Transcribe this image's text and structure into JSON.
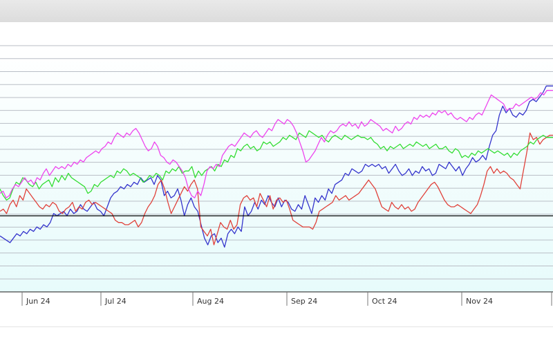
{
  "chart_data": {
    "type": "line",
    "grid": true,
    "x_tick_labels": [
      "Jun 24",
      "Jul 24",
      "Aug 24",
      "Sep 24",
      "Oct 24",
      "Nov 24"
    ],
    "reference_line": 0,
    "ylim": [
      -0.34,
      0.76
    ],
    "series": [
      {
        "color": "#3333cc",
        "values": [
          -0.09,
          -0.1,
          -0.11,
          -0.12,
          -0.1,
          -0.08,
          -0.09,
          -0.07,
          -0.08,
          -0.06,
          -0.07,
          -0.05,
          -0.06,
          -0.04,
          -0.05,
          -0.03,
          0.01,
          0.0,
          0.01,
          0.02,
          0.0,
          0.03,
          0.01,
          0.02,
          0.05,
          0.03,
          0.02,
          0.04,
          0.06,
          0.03,
          0.02,
          0.0,
          0.04,
          0.08,
          0.1,
          0.11,
          0.13,
          0.12,
          0.14,
          0.13,
          0.15,
          0.14,
          0.17,
          0.15,
          0.16,
          0.17,
          0.14,
          0.18,
          0.16,
          0.09,
          0.11,
          0.08,
          0.09,
          0.12,
          0.07,
          0.0,
          0.05,
          0.08,
          0.04,
          0.02,
          -0.04,
          -0.1,
          -0.13,
          -0.09,
          -0.08,
          -0.12,
          -0.1,
          -0.14,
          -0.08,
          -0.06,
          -0.08,
          -0.05,
          -0.07,
          0.04,
          0.0,
          0.02,
          0.06,
          0.03,
          0.07,
          0.05,
          0.09,
          0.06,
          0.04,
          0.08,
          0.04,
          0.07,
          0.06,
          0.03,
          0.02,
          0.05,
          0.03,
          0.09,
          0.05,
          0.01,
          0.08,
          0.06,
          0.09,
          0.07,
          0.12,
          0.1,
          0.14,
          0.15,
          0.16,
          0.19,
          0.18,
          0.21,
          0.2,
          0.19,
          0.2,
          0.23,
          0.22,
          0.23,
          0.22,
          0.23,
          0.21,
          0.22,
          0.19,
          0.21,
          0.23,
          0.2,
          0.18,
          0.19,
          0.21,
          0.18,
          0.2,
          0.19,
          0.22,
          0.2,
          0.21,
          0.18,
          0.19,
          0.23,
          0.22,
          0.21,
          0.24,
          0.22,
          0.2,
          0.22,
          0.18,
          0.21,
          0.23,
          0.26,
          0.24,
          0.25,
          0.27,
          0.25,
          0.31,
          0.36,
          0.38,
          0.45,
          0.49,
          0.46,
          0.48,
          0.45,
          0.44,
          0.46,
          0.45,
          0.47,
          0.51,
          0.52,
          0.51,
          0.53,
          0.55,
          0.58,
          0.58,
          0.58
        ]
      },
      {
        "color": "#e0413a",
        "values": [
          0.02,
          0.03,
          0.01,
          0.05,
          0.07,
          0.04,
          0.09,
          0.07,
          0.12,
          0.1,
          0.08,
          0.06,
          0.04,
          0.03,
          0.05,
          0.04,
          0.06,
          0.05,
          0.02,
          0.01,
          0.03,
          0.04,
          0.06,
          0.02,
          0.04,
          0.03,
          0.06,
          0.07,
          0.05,
          0.06,
          0.05,
          0.04,
          0.03,
          0.02,
          0.01,
          -0.02,
          -0.03,
          -0.03,
          -0.04,
          -0.04,
          -0.03,
          -0.02,
          -0.05,
          -0.03,
          0.01,
          0.04,
          0.06,
          0.09,
          0.14,
          0.16,
          0.12,
          0.06,
          0.01,
          0.04,
          0.07,
          0.1,
          0.13,
          0.11,
          0.14,
          0.16,
          0.12,
          -0.05,
          -0.07,
          -0.09,
          -0.06,
          -0.13,
          -0.08,
          -0.03,
          -0.05,
          -0.06,
          -0.02,
          -0.06,
          -0.04,
          0.05,
          0.08,
          0.09,
          0.07,
          0.08,
          0.04,
          0.1,
          0.07,
          0.04,
          0.09,
          0.03,
          0.07,
          0.08,
          0.06,
          0.07,
          0.03,
          -0.02,
          -0.03,
          -0.04,
          -0.05,
          -0.05,
          -0.05,
          -0.06,
          -0.03,
          0.02,
          0.03,
          0.04,
          0.05,
          0.06,
          0.09,
          0.07,
          0.08,
          0.09,
          0.07,
          0.08,
          0.09,
          0.1,
          0.12,
          0.14,
          0.16,
          0.14,
          0.12,
          0.08,
          0.04,
          0.03,
          0.02,
          0.06,
          0.04,
          0.03,
          0.05,
          0.03,
          0.04,
          0.02,
          0.03,
          0.06,
          0.08,
          0.1,
          0.12,
          0.14,
          0.15,
          0.13,
          0.1,
          0.07,
          0.05,
          0.04,
          0.04,
          0.05,
          0.04,
          0.03,
          0.02,
          0.01,
          0.03,
          0.05,
          0.09,
          0.14,
          0.2,
          0.22,
          0.19,
          0.21,
          0.19,
          0.2,
          0.19,
          0.17,
          0.16,
          0.14,
          0.12,
          0.2,
          0.28,
          0.37,
          0.34,
          0.35,
          0.32,
          0.34,
          0.35,
          0.36,
          0.36
        ]
      },
      {
        "color": "#33dd33",
        "values": [
          0.12,
          0.09,
          0.07,
          0.08,
          0.12,
          0.15,
          0.14,
          0.17,
          0.16,
          0.14,
          0.13,
          0.15,
          0.12,
          0.14,
          0.15,
          0.16,
          0.13,
          0.17,
          0.15,
          0.18,
          0.16,
          0.19,
          0.17,
          0.16,
          0.15,
          0.14,
          0.13,
          0.1,
          0.11,
          0.14,
          0.13,
          0.15,
          0.16,
          0.17,
          0.18,
          0.17,
          0.2,
          0.19,
          0.21,
          0.2,
          0.18,
          0.19,
          0.18,
          0.17,
          0.15,
          0.16,
          0.18,
          0.17,
          0.19,
          0.18,
          0.16,
          0.2,
          0.19,
          0.21,
          0.2,
          0.22,
          0.19,
          0.2,
          0.2,
          0.22,
          0.17,
          0.2,
          0.18,
          0.2,
          0.21,
          0.22,
          0.2,
          0.23,
          0.22,
          0.25,
          0.24,
          0.27,
          0.26,
          0.3,
          0.29,
          0.31,
          0.32,
          0.3,
          0.31,
          0.29,
          0.3,
          0.33,
          0.32,
          0.33,
          0.31,
          0.32,
          0.33,
          0.35,
          0.34,
          0.36,
          0.35,
          0.34,
          0.37,
          0.36,
          0.35,
          0.38,
          0.37,
          0.36,
          0.35,
          0.36,
          0.34,
          0.33,
          0.35,
          0.36,
          0.35,
          0.34,
          0.36,
          0.35,
          0.34,
          0.35,
          0.36,
          0.35,
          0.35,
          0.34,
          0.35,
          0.33,
          0.32,
          0.3,
          0.31,
          0.29,
          0.31,
          0.3,
          0.31,
          0.32,
          0.3,
          0.31,
          0.32,
          0.31,
          0.33,
          0.32,
          0.31,
          0.32,
          0.3,
          0.31,
          0.32,
          0.3,
          0.3,
          0.31,
          0.29,
          0.28,
          0.3,
          0.29,
          0.26,
          0.27,
          0.26,
          0.28,
          0.27,
          0.29,
          0.28,
          0.29,
          0.3,
          0.29,
          0.28,
          0.29,
          0.28,
          0.27,
          0.28,
          0.26,
          0.28,
          0.27,
          0.29,
          0.3,
          0.31,
          0.33,
          0.32,
          0.34,
          0.35,
          0.36,
          0.35,
          0.35,
          0.35
        ]
      },
      {
        "color": "#ee44ee",
        "values": [
          0.1,
          0.11,
          0.08,
          0.09,
          0.12,
          0.14,
          0.13,
          0.15,
          0.17,
          0.15,
          0.16,
          0.14,
          0.17,
          0.16,
          0.19,
          0.21,
          0.18,
          0.2,
          0.22,
          0.21,
          0.22,
          0.21,
          0.23,
          0.22,
          0.24,
          0.23,
          0.25,
          0.24,
          0.26,
          0.27,
          0.28,
          0.29,
          0.28,
          0.3,
          0.31,
          0.33,
          0.32,
          0.35,
          0.37,
          0.36,
          0.35,
          0.37,
          0.36,
          0.38,
          0.39,
          0.37,
          0.34,
          0.31,
          0.29,
          0.3,
          0.33,
          0.31,
          0.27,
          0.26,
          0.24,
          0.23,
          0.25,
          0.24,
          0.22,
          0.2,
          0.17,
          0.12,
          0.09,
          0.08,
          0.11,
          0.09,
          0.14,
          0.2,
          0.22,
          0.21,
          0.23,
          0.22,
          0.27,
          0.29,
          0.31,
          0.32,
          0.31,
          0.33,
          0.35,
          0.37,
          0.36,
          0.35,
          0.37,
          0.38,
          0.36,
          0.35,
          0.37,
          0.39,
          0.38,
          0.41,
          0.43,
          0.42,
          0.41,
          0.43,
          0.42,
          0.4,
          0.37,
          0.33,
          0.29,
          0.24,
          0.25,
          0.27,
          0.29,
          0.32,
          0.35,
          0.33,
          0.36,
          0.38,
          0.37,
          0.38,
          0.4,
          0.41,
          0.4,
          0.42,
          0.4,
          0.41,
          0.39,
          0.42,
          0.4,
          0.41,
          0.43,
          0.42,
          0.41,
          0.4,
          0.38,
          0.39,
          0.38,
          0.37,
          0.4,
          0.38,
          0.39,
          0.41,
          0.42,
          0.41,
          0.44,
          0.43,
          0.45,
          0.44,
          0.45,
          0.44,
          0.46,
          0.45,
          0.47,
          0.46,
          0.47,
          0.45,
          0.46,
          0.44,
          0.43,
          0.44,
          0.43,
          0.42,
          0.44,
          0.43,
          0.45,
          0.46,
          0.45,
          0.48,
          0.51,
          0.54,
          0.53,
          0.52,
          0.51,
          0.5,
          0.47,
          0.48,
          0.48,
          0.5,
          0.49,
          0.5,
          0.51,
          0.52,
          0.53,
          0.52,
          0.53,
          0.55,
          0.54,
          0.56,
          0.56,
          0.56
        ]
      }
    ]
  }
}
